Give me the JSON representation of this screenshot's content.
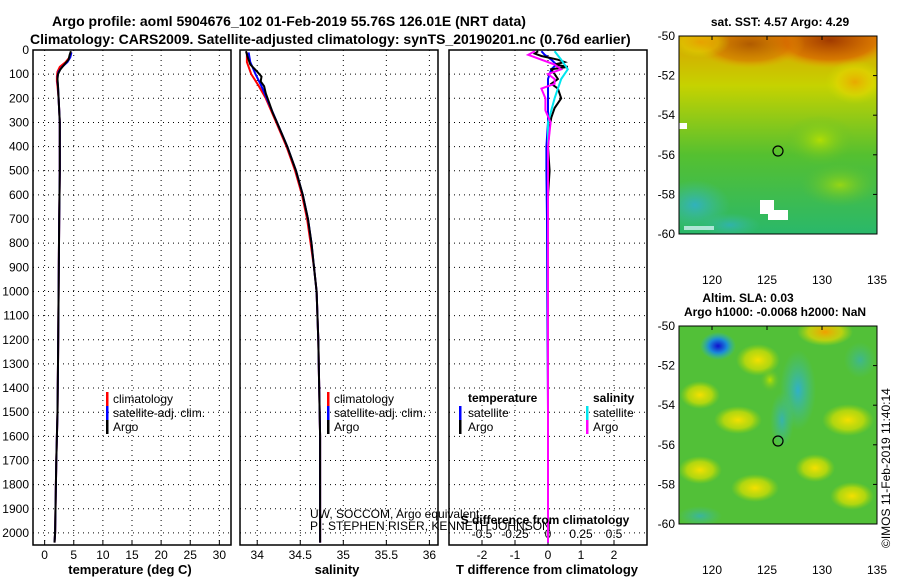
{
  "header": {
    "title_line1": "Argo profile: aoml 5904676_102 01-Feb-2019 55.76S 126.01E (NRT data)",
    "title_line2": "Climatology: CARS2009. Satellite-adjusted climatology: synTS_20190201.nc (0.76d earlier)"
  },
  "colors": {
    "climatology": "#ff0000",
    "satellite_adj": "#0000ff",
    "argo": "#000000",
    "satellite_sal": "#00e5ee",
    "argo_sal": "#ff00ff"
  },
  "chart_data": [
    {
      "id": "temperature",
      "type": "line",
      "xlabel": "temperature (deg C)",
      "ylabel": "",
      "xlim": [
        -2,
        32
      ],
      "ylim": [
        2050,
        0
      ],
      "xticks": [
        "0",
        "5",
        "10",
        "15",
        "20",
        "25",
        "30"
      ],
      "xtick_values": [
        0,
        5,
        10,
        15,
        20,
        25,
        30
      ],
      "yticks": [
        "0",
        "100",
        "200",
        "300",
        "400",
        "500",
        "600",
        "700",
        "800",
        "900",
        "1000",
        "1100",
        "1200",
        "1300",
        "1400",
        "1500",
        "1600",
        "1700",
        "1800",
        "1900",
        "2000"
      ],
      "ytick_values": [
        0,
        100,
        200,
        300,
        400,
        500,
        600,
        700,
        800,
        900,
        1000,
        1100,
        1200,
        1300,
        1400,
        1500,
        1600,
        1700,
        1800,
        1900,
        2000
      ],
      "legend": [
        "climatology",
        "satellite-adj. clim.",
        "Argo"
      ],
      "series": [
        {
          "name": "climatology",
          "color": "#ff0000",
          "depth": [
            10,
            30,
            50,
            70,
            90,
            110,
            130,
            150,
            200,
            300,
            400,
            500,
            700,
            1000,
            1300,
            1500,
            1700,
            2000,
            2040
          ],
          "values": [
            4.6,
            4.3,
            3.6,
            2.6,
            2.2,
            2.1,
            2.1,
            2.2,
            2.4,
            2.6,
            2.6,
            2.6,
            2.5,
            2.4,
            2.3,
            2.2,
            2.0,
            1.8,
            1.7
          ]
        },
        {
          "name": "satellite-adj. clim.",
          "color": "#0000ff",
          "depth": [
            10,
            30,
            50,
            70,
            90,
            110,
            130,
            150,
            200,
            300,
            400,
            500,
            700,
            1000,
            1300,
            1500,
            1700,
            2000,
            2040
          ],
          "values": [
            4.6,
            4.4,
            3.9,
            3.0,
            2.4,
            2.2,
            2.2,
            2.3,
            2.4,
            2.6,
            2.6,
            2.6,
            2.5,
            2.4,
            2.3,
            2.2,
            2.0,
            1.8,
            1.7
          ]
        },
        {
          "name": "Argo",
          "color": "#000000",
          "depth": [
            5,
            20,
            40,
            60,
            80,
            100,
            120,
            150,
            200,
            300,
            400,
            500,
            700,
            1000,
            1300,
            1500,
            1700,
            2000,
            2040
          ],
          "values": [
            4.5,
            4.3,
            4.1,
            3.4,
            2.7,
            2.3,
            2.2,
            2.3,
            2.4,
            2.6,
            2.6,
            2.6,
            2.5,
            2.4,
            2.3,
            2.2,
            2.0,
            1.8,
            1.7
          ]
        }
      ]
    },
    {
      "id": "salinity",
      "type": "line",
      "xlabel": "salinity",
      "xlim": [
        33.8,
        36.1
      ],
      "ylim": [
        2050,
        0
      ],
      "xticks": [
        "34",
        "34.5",
        "35",
        "35.5",
        "36"
      ],
      "xtick_values": [
        34,
        34.5,
        35,
        35.5,
        36
      ],
      "legend": [
        "climatology",
        "satellite-adj. clim.",
        "Argo"
      ],
      "series": [
        {
          "name": "climatology",
          "color": "#ff0000",
          "depth": [
            10,
            50,
            100,
            150,
            200,
            250,
            300,
            400,
            500,
            600,
            700,
            800,
            900,
            1000,
            1200,
            1400,
            1600,
            1800,
            2000,
            2040
          ],
          "values": [
            33.88,
            33.88,
            33.93,
            34.02,
            34.1,
            34.16,
            34.22,
            34.34,
            34.44,
            34.52,
            34.58,
            34.62,
            34.66,
            34.69,
            34.71,
            34.72,
            34.73,
            34.73,
            34.73,
            34.73
          ]
        },
        {
          "name": "satellite-adj. clim.",
          "color": "#0000ff",
          "depth": [
            10,
            50,
            100,
            150,
            200,
            250,
            300,
            400,
            500,
            600,
            700,
            800,
            900,
            1000,
            1200,
            1400,
            1600,
            1800,
            2000,
            2040
          ],
          "values": [
            33.9,
            33.92,
            33.98,
            34.05,
            34.11,
            34.17,
            34.23,
            34.35,
            34.45,
            34.53,
            34.59,
            34.63,
            34.66,
            34.69,
            34.71,
            34.72,
            34.73,
            34.73,
            34.73,
            34.73
          ]
        },
        {
          "name": "Argo",
          "color": "#000000",
          "depth": [
            5,
            30,
            60,
            90,
            110,
            130,
            150,
            180,
            220,
            260,
            300,
            400,
            500,
            600,
            700,
            800,
            900,
            1000,
            1200,
            1400,
            1600,
            1800,
            2000,
            2040
          ],
          "values": [
            33.87,
            33.89,
            33.92,
            34.0,
            34.05,
            34.04,
            34.08,
            34.1,
            34.14,
            34.18,
            34.23,
            34.35,
            34.45,
            34.53,
            34.59,
            34.63,
            34.66,
            34.69,
            34.71,
            34.72,
            34.73,
            34.73,
            34.73,
            34.73
          ]
        }
      ]
    },
    {
      "id": "difference",
      "type": "line",
      "xlabel": "T difference from climatology",
      "xlabel2": "S difference from climatology",
      "xlim": [
        -3,
        3
      ],
      "ylim": [
        2050,
        0
      ],
      "xticks": [
        "-2",
        "-1",
        "0",
        "1",
        "2"
      ],
      "xtick_values": [
        -2,
        -1,
        0,
        1,
        2
      ],
      "xticks_top": [
        "-0.5",
        "-0.25",
        "0",
        "0.25",
        "0.5"
      ],
      "xtick_top_values": [
        -0.5,
        -0.25,
        0,
        0.25,
        0.5
      ],
      "legend_left_title": "temperature",
      "legend_right_title": "salinity",
      "legend": [
        "satellite",
        "Argo"
      ],
      "series": [
        {
          "name": "T satellite",
          "color": "#0000ff",
          "depth": [
            5,
            20,
            40,
            60,
            80,
            100,
            120,
            150,
            200,
            300,
            400,
            500,
            700,
            1000,
            1500,
            2000,
            2040
          ],
          "values": [
            -0.2,
            -0.1,
            0.1,
            0.25,
            0.1,
            0.05,
            0.0,
            0.0,
            0.0,
            0.0,
            -0.05,
            -0.05,
            -0.03,
            -0.02,
            0.0,
            0.0,
            0.0
          ]
        },
        {
          "name": "T Argo",
          "color": "#000000",
          "depth": [
            5,
            15,
            25,
            40,
            50,
            60,
            70,
            80,
            100,
            120,
            140,
            160,
            200,
            240,
            280,
            320,
            400,
            500,
            600,
            800,
            1000,
            1500,
            2000,
            2040
          ],
          "values": [
            -0.3,
            -0.4,
            -0.2,
            0.3,
            0.5,
            0.2,
            0.6,
            0.1,
            0.2,
            0.3,
            0.1,
            0.3,
            0.4,
            0.2,
            0.1,
            0.05,
            0.0,
            0.05,
            0.0,
            0.0,
            0.0,
            0.0,
            0.0,
            0.0
          ]
        },
        {
          "name": "S satellite",
          "color": "#00e5ee",
          "depth": [
            5,
            40,
            80,
            120,
            200,
            300,
            400,
            600,
            800,
            1000,
            1500,
            2000,
            2040
          ],
          "values": [
            0.05,
            0.1,
            0.15,
            0.1,
            0.05,
            0.0,
            0.0,
            0.0,
            0.0,
            0.0,
            0.0,
            0.0,
            0.0
          ]
        },
        {
          "name": "S Argo",
          "color": "#ff00ff",
          "depth": [
            5,
            20,
            40,
            60,
            80,
            100,
            120,
            140,
            160,
            200,
            250,
            300,
            400,
            500,
            600,
            800,
            1000,
            1500,
            2000,
            2040
          ],
          "values": [
            -0.1,
            -0.15,
            -0.05,
            0.05,
            0.1,
            0.0,
            0.05,
            0.05,
            -0.05,
            -0.02,
            -0.02,
            0.02,
            0.0,
            0.0,
            0.0,
            0.0,
            0.0,
            0.0,
            0.0,
            0.0
          ]
        }
      ]
    },
    {
      "id": "sst-map",
      "type": "heatmap",
      "title": "sat. SST: 4.57 Argo: 4.29",
      "xticks": [
        "120",
        "125",
        "130",
        "135"
      ],
      "xtick_values": [
        120,
        125,
        130,
        135
      ],
      "yticks": [
        "-50",
        "-52",
        "-54",
        "-56",
        "-58",
        "-60"
      ],
      "ytick_values": [
        -50,
        -52,
        -54,
        -56,
        -58,
        -60
      ],
      "xlim": [
        117,
        135
      ],
      "ylim": [
        -60,
        -50
      ],
      "marker": {
        "lon": 126.01,
        "lat": -55.76
      }
    },
    {
      "id": "sla-map",
      "type": "heatmap",
      "title": "Altim. SLA: 0.03",
      "subtitle": "Argo h1000: -0.0068 h2000: NaN",
      "xticks": [
        "120",
        "125",
        "130",
        "135"
      ],
      "xtick_values": [
        120,
        125,
        130,
        135
      ],
      "yticks": [
        "-50",
        "-52",
        "-54",
        "-56",
        "-58",
        "-60"
      ],
      "ytick_values": [
        -50,
        -52,
        -54,
        -56,
        -58,
        -60
      ],
      "xlim": [
        117,
        135
      ],
      "ylim": [
        -60,
        -50
      ],
      "marker": {
        "lon": 126.01,
        "lat": -55.76
      }
    }
  ],
  "attribution": {
    "line1": "UW, SOCCOM, Argo equivalent",
    "line2": "PI: STEPHEN RISER, KENNETH JOHNSON"
  },
  "watermark": "©IMOS 11-Feb-2019 11:40:14"
}
